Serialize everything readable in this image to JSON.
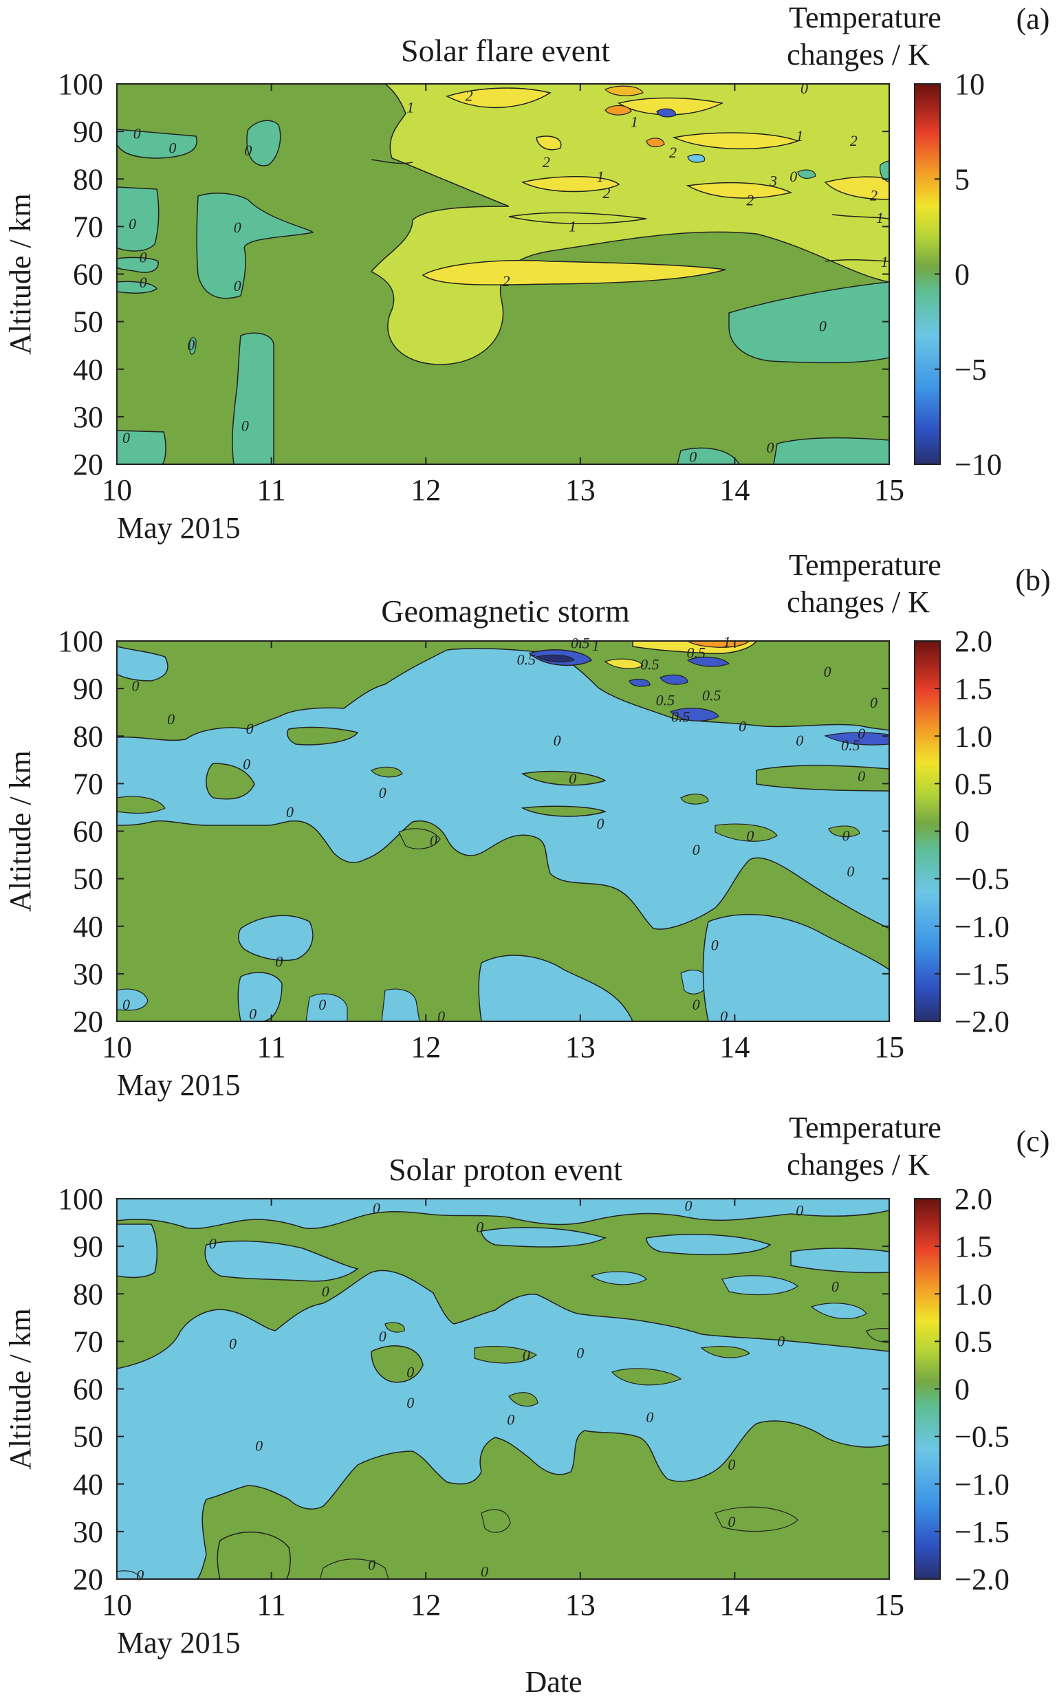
{
  "xlabel": "Date",
  "colors": {
    "background": "#75a843",
    "negative": "#71c6e0",
    "positive_low": "#c6dd46",
    "positive_mid": "#f2e23e",
    "strong_neg": "#3e59c9",
    "contour_line": "#222222",
    "colormap": [
      "#27306e",
      "#2f52c4",
      "#3d95e6",
      "#6cc6e6",
      "#5cbf97",
      "#75a843",
      "#b6d437",
      "#f0e42a",
      "#f39a27",
      "#e8402a",
      "#a4241c",
      "#6b130f"
    ]
  },
  "chart_data": [
    {
      "panel": "(a)",
      "type": "heatmap",
      "title": "Solar flare event",
      "ylabel": "Altitude / km",
      "xlabel_date": "May 2015",
      "x_ticks": [
        "10",
        "11",
        "12",
        "13",
        "14",
        "15"
      ],
      "y_ticks": [
        "100",
        "90",
        "80",
        "70",
        "60",
        "50",
        "40",
        "30",
        "20"
      ],
      "xlim": [
        10,
        15
      ],
      "ylim": [
        20,
        100
      ],
      "colorbar": {
        "title_line1": "Temperature",
        "title_line2": "changes / K",
        "ticks": [
          "10",
          "5",
          "0",
          "−5",
          "−10"
        ],
        "range": [
          -10,
          10
        ]
      },
      "contour_labels": [
        {
          "x": 10.13,
          "y": 89.5,
          "text": "0"
        },
        {
          "x": 10.36,
          "y": 86.5,
          "text": "0"
        },
        {
          "x": 10.85,
          "y": 86,
          "text": "0"
        },
        {
          "x": 10.1,
          "y": 70.5,
          "text": "0"
        },
        {
          "x": 10.17,
          "y": 63.5,
          "text": "0"
        },
        {
          "x": 10.17,
          "y": 58.2,
          "text": "0"
        },
        {
          "x": 10.78,
          "y": 69.8,
          "text": "0"
        },
        {
          "x": 10.78,
          "y": 57.5,
          "text": "0"
        },
        {
          "x": 10.48,
          "y": 45,
          "text": "0"
        },
        {
          "x": 10.83,
          "y": 28,
          "text": "0"
        },
        {
          "x": 10.06,
          "y": 25.5,
          "text": "0"
        },
        {
          "x": 11.9,
          "y": 95,
          "text": "1"
        },
        {
          "x": 12.28,
          "y": 97.5,
          "text": "2"
        },
        {
          "x": 12.78,
          "y": 83.5,
          "text": "2"
        },
        {
          "x": 13.13,
          "y": 80.5,
          "text": "1"
        },
        {
          "x": 13.17,
          "y": 77,
          "text": "2"
        },
        {
          "x": 12.95,
          "y": 70,
          "text": "1"
        },
        {
          "x": 12.52,
          "y": 58.5,
          "text": "2"
        },
        {
          "x": 13.35,
          "y": 92,
          "text": "1"
        },
        {
          "x": 13.6,
          "y": 85.5,
          "text": "2"
        },
        {
          "x": 14.1,
          "y": 75.5,
          "text": "2"
        },
        {
          "x": 14.25,
          "y": 79.5,
          "text": "3"
        },
        {
          "x": 14.42,
          "y": 89,
          "text": "1"
        },
        {
          "x": 14.77,
          "y": 88,
          "text": "2"
        },
        {
          "x": 14.38,
          "y": 80.5,
          "text": "0"
        },
        {
          "x": 14.9,
          "y": 76.5,
          "text": "2"
        },
        {
          "x": 14.94,
          "y": 71.8,
          "text": "1"
        },
        {
          "x": 14.97,
          "y": 62.5,
          "text": "1"
        },
        {
          "x": 14.57,
          "y": 49,
          "text": "0"
        },
        {
          "x": 14.23,
          "y": 23.5,
          "text": "0"
        },
        {
          "x": 13.73,
          "y": 21.5,
          "text": "0"
        },
        {
          "x": 14.45,
          "y": 99,
          "text": "0"
        }
      ]
    },
    {
      "panel": "(b)",
      "type": "heatmap",
      "title": "Geomagnetic storm",
      "ylabel": "Altitude / km",
      "xlabel_date": "May 2015",
      "x_ticks": [
        "10",
        "11",
        "12",
        "13",
        "14",
        "15"
      ],
      "y_ticks": [
        "100",
        "90",
        "80",
        "70",
        "60",
        "50",
        "40",
        "30",
        "20"
      ],
      "xlim": [
        10,
        15
      ],
      "ylim": [
        20,
        100
      ],
      "colorbar": {
        "title_line1": "Temperature",
        "title_line2": "changes / K",
        "ticks": [
          "2.0",
          "1.5",
          "1.0",
          "0.5",
          "0",
          "−0.5",
          "−1.0",
          "−1.5",
          "−2.0"
        ],
        "range": [
          -2,
          2
        ]
      },
      "contour_labels": [
        {
          "x": 10.12,
          "y": 90.5,
          "text": "0"
        },
        {
          "x": 10.35,
          "y": 83.5,
          "text": "0"
        },
        {
          "x": 10.86,
          "y": 81.5,
          "text": "0"
        },
        {
          "x": 10.84,
          "y": 74,
          "text": "0"
        },
        {
          "x": 11.12,
          "y": 64,
          "text": "0"
        },
        {
          "x": 11.72,
          "y": 68,
          "text": "0"
        },
        {
          "x": 12.05,
          "y": 58,
          "text": "0"
        },
        {
          "x": 10.06,
          "y": 23.5,
          "text": "0"
        },
        {
          "x": 10.88,
          "y": 21.5,
          "text": "0"
        },
        {
          "x": 11.05,
          "y": 32.5,
          "text": "0"
        },
        {
          "x": 11.33,
          "y": 23.5,
          "text": "0"
        },
        {
          "x": 12.1,
          "y": 21,
          "text": "0"
        },
        {
          "x": 12.85,
          "y": 79,
          "text": "0"
        },
        {
          "x": 12.95,
          "y": 71,
          "text": "0"
        },
        {
          "x": 13.13,
          "y": 61.5,
          "text": "0"
        },
        {
          "x": 13.75,
          "y": 56,
          "text": "0"
        },
        {
          "x": 13.75,
          "y": 23.5,
          "text": "0"
        },
        {
          "x": 13.93,
          "y": 21,
          "text": "0"
        },
        {
          "x": 14.05,
          "y": 82,
          "text": "0"
        },
        {
          "x": 14.42,
          "y": 79,
          "text": "0"
        },
        {
          "x": 14.82,
          "y": 80.5,
          "text": "0"
        },
        {
          "x": 14.9,
          "y": 87,
          "text": "0"
        },
        {
          "x": 14.6,
          "y": 93.5,
          "text": "0"
        },
        {
          "x": 14.82,
          "y": 71.5,
          "text": "0"
        },
        {
          "x": 14.1,
          "y": 59,
          "text": "0"
        },
        {
          "x": 14.72,
          "y": 59,
          "text": "0"
        },
        {
          "x": 14.75,
          "y": 51.5,
          "text": "0"
        },
        {
          "x": 13.87,
          "y": 36,
          "text": "0"
        },
        {
          "x": 12.65,
          "y": 96,
          "text": "0.5"
        },
        {
          "x": 13.0,
          "y": 99.5,
          "text": "0.5"
        },
        {
          "x": 13.1,
          "y": 99,
          "text": "1"
        },
        {
          "x": 13.45,
          "y": 95,
          "text": "0.5"
        },
        {
          "x": 13.75,
          "y": 97.5,
          "text": "0.5"
        },
        {
          "x": 13.95,
          "y": 99.8,
          "text": "1"
        },
        {
          "x": 13.85,
          "y": 88.5,
          "text": "0.5"
        },
        {
          "x": 13.55,
          "y": 87.5,
          "text": "0.5"
        },
        {
          "x": 13.65,
          "y": 84,
          "text": "0.5"
        },
        {
          "x": 14.75,
          "y": 78,
          "text": "0.5"
        }
      ]
    },
    {
      "panel": "(c)",
      "type": "heatmap",
      "title": "Solar proton event",
      "ylabel": "Altitude / km",
      "xlabel_date": "May 2015",
      "x_ticks": [
        "10",
        "11",
        "12",
        "13",
        "14",
        "15"
      ],
      "y_ticks": [
        "100",
        "90",
        "80",
        "70",
        "60",
        "50",
        "40",
        "30",
        "20"
      ],
      "xlim": [
        10,
        15
      ],
      "ylim": [
        20,
        100
      ],
      "colorbar": {
        "title_line1": "Temperature",
        "title_line2": "changes / K",
        "ticks": [
          "2.0",
          "1.5",
          "1.0",
          "0.5",
          "0",
          "−0.5",
          "−1.0",
          "−1.5",
          "−2.0"
        ],
        "range": [
          -2,
          2
        ]
      },
      "contour_labels": [
        {
          "x": 11.68,
          "y": 98,
          "text": "0"
        },
        {
          "x": 10.62,
          "y": 90.5,
          "text": "0"
        },
        {
          "x": 11.35,
          "y": 80.5,
          "text": "0"
        },
        {
          "x": 10.75,
          "y": 69.5,
          "text": "0"
        },
        {
          "x": 11.72,
          "y": 71,
          "text": "0"
        },
        {
          "x": 11.9,
          "y": 63.5,
          "text": "0"
        },
        {
          "x": 11.9,
          "y": 57,
          "text": "0"
        },
        {
          "x": 10.92,
          "y": 48,
          "text": "0"
        },
        {
          "x": 12.35,
          "y": 94,
          "text": "0"
        },
        {
          "x": 12.65,
          "y": 67,
          "text": "0"
        },
        {
          "x": 12.55,
          "y": 53.5,
          "text": "0"
        },
        {
          "x": 13.0,
          "y": 67.5,
          "text": "0"
        },
        {
          "x": 13.45,
          "y": 54,
          "text": "0"
        },
        {
          "x": 13.7,
          "y": 98.5,
          "text": "0"
        },
        {
          "x": 14.42,
          "y": 97.5,
          "text": "0"
        },
        {
          "x": 14.65,
          "y": 81.5,
          "text": "0"
        },
        {
          "x": 14.3,
          "y": 70,
          "text": "0"
        },
        {
          "x": 13.98,
          "y": 44,
          "text": "0"
        },
        {
          "x": 13.98,
          "y": 32,
          "text": "0"
        },
        {
          "x": 11.65,
          "y": 23,
          "text": "0"
        },
        {
          "x": 12.38,
          "y": 21.5,
          "text": "0"
        },
        {
          "x": 10.15,
          "y": 20.8,
          "text": "0"
        }
      ]
    }
  ],
  "panels": [
    {
      "id": "(a)",
      "title": "Solar flare event",
      "cb1": "Temperature",
      "cb2": "changes / K"
    },
    {
      "id": "(b)",
      "title": "Geomagnetic storm",
      "cb1": "Temperature",
      "cb2": "changes / K"
    },
    {
      "id": "(c)",
      "title": "Solar proton event",
      "cb1": "Temperature",
      "cb2": "changes / K"
    }
  ]
}
